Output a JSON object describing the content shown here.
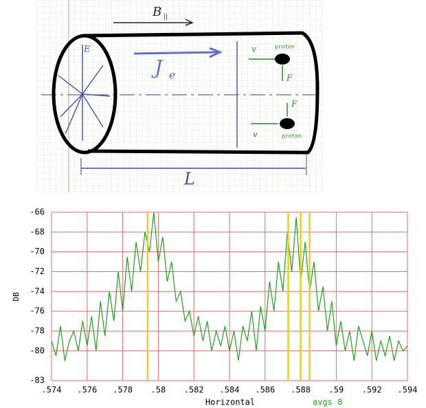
{
  "diagram": {
    "b_field": "B",
    "b_sub": "||",
    "e_field": "E",
    "current": "J",
    "current_sub": "e",
    "proton_top": "proton",
    "proton_bottom": "proton",
    "force_top": "F",
    "force_bottom": "F",
    "velocity_top": "v",
    "velocity_bottom": "v",
    "length": "L"
  },
  "chart_data": {
    "type": "line",
    "xlabel": "Horizontal",
    "ylabel": "DB",
    "annotation": "avgs 8",
    "color": "#1f9e1f",
    "grid": true,
    "grid_color": "#e06a6a",
    "xlim": [
      0.574,
      0.594
    ],
    "ylim": [
      -83,
      -66
    ],
    "xticks": [
      {
        "value": 0.574,
        "label": ".574"
      },
      {
        "value": 0.576,
        "label": ".576"
      },
      {
        "value": 0.578,
        "label": ".578"
      },
      {
        "value": 0.58,
        "label": ".58"
      },
      {
        "value": 0.582,
        "label": ".582"
      },
      {
        "value": 0.584,
        "label": ".584"
      },
      {
        "value": 0.586,
        "label": ".586"
      },
      {
        "value": 0.588,
        "label": ".588"
      },
      {
        "value": 0.59,
        "label": ".59"
      },
      {
        "value": 0.592,
        "label": ".592"
      },
      {
        "value": 0.594,
        "label": ".594"
      }
    ],
    "yticks": [
      -66,
      -68,
      -70,
      -72,
      -74,
      -76,
      -78,
      -80,
      -83
    ],
    "x": [
      0.574,
      0.57425,
      0.5745,
      0.57475,
      0.575,
      0.57525,
      0.5755,
      0.57575,
      0.576,
      0.57625,
      0.5765,
      0.57675,
      0.577,
      0.57725,
      0.5775,
      0.57775,
      0.578,
      0.57825,
      0.5785,
      0.57875,
      0.579,
      0.57925,
      0.5795,
      0.57975,
      0.58,
      0.58025,
      0.5805,
      0.58075,
      0.581,
      0.58125,
      0.5815,
      0.58175,
      0.582,
      0.58225,
      0.5825,
      0.58275,
      0.583,
      0.58325,
      0.5835,
      0.58375,
      0.584,
      0.58425,
      0.5845,
      0.58475,
      0.585,
      0.58525,
      0.5855,
      0.58575,
      0.586,
      0.58625,
      0.5865,
      0.58675,
      0.587,
      0.58725,
      0.5875,
      0.58775,
      0.588,
      0.58825,
      0.5885,
      0.58875,
      0.589,
      0.58925,
      0.5895,
      0.58975,
      0.59,
      0.59025,
      0.5905,
      0.59075,
      0.591,
      0.59125,
      0.5915,
      0.59175,
      0.592,
      0.59225,
      0.5925,
      0.59275,
      0.593,
      0.59325,
      0.5935,
      0.59375,
      0.594
    ],
    "values": [
      -79,
      -80.5,
      -77.5,
      -81,
      -79,
      -78,
      -80,
      -77,
      -79.5,
      -76.5,
      -80,
      -75,
      -78.5,
      -74,
      -77,
      -72,
      -76,
      -70.5,
      -74,
      -69,
      -72,
      -68,
      -70,
      -66,
      -71,
      -68.5,
      -73,
      -71,
      -75,
      -74,
      -77,
      -76,
      -78.5,
      -76.5,
      -79,
      -77,
      -80,
      -78,
      -79.5,
      -77.5,
      -80,
      -78,
      -81,
      -77.5,
      -79,
      -76,
      -80,
      -75.5,
      -78,
      -73,
      -76,
      -71,
      -74,
      -68,
      -72,
      -66.5,
      -73,
      -69,
      -74,
      -71,
      -76,
      -73.5,
      -78,
      -75,
      -79.5,
      -77,
      -80,
      -78,
      -81,
      -77.5,
      -79,
      -80.5,
      -78,
      -81,
      -79,
      -80.5,
      -78.5,
      -81,
      -79,
      -80,
      -79.5
    ],
    "markers": {
      "color": "#e6d21e",
      "values": [
        0.5794,
        0.5873,
        0.588,
        0.5885
      ]
    }
  }
}
